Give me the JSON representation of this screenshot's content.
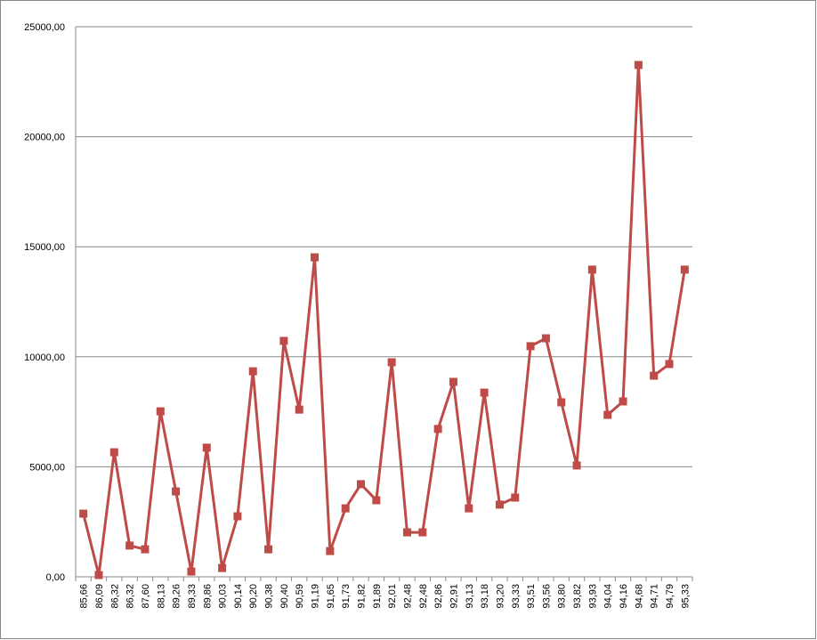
{
  "chart_data": {
    "type": "line",
    "categories": [
      "85,66",
      "86,09",
      "86,32",
      "86,32",
      "87,60",
      "88,13",
      "89,26",
      "89,33",
      "89,86",
      "90,03",
      "90,14",
      "90,20",
      "90,38",
      "90,40",
      "90,59",
      "91,19",
      "91,65",
      "91,73",
      "91,82",
      "91,89",
      "92,01",
      "92,48",
      "92,48",
      "92,86",
      "92,91",
      "93,13",
      "93,18",
      "93,20",
      "93,33",
      "93,51",
      "93,56",
      "93,80",
      "93,82",
      "93,93",
      "94,04",
      "94,16",
      "94,68",
      "94,71",
      "94,79",
      "95,33"
    ],
    "values": [
      2870,
      80,
      5660,
      1420,
      1250,
      7520,
      3880,
      240,
      5870,
      400,
      2750,
      9340,
      1250,
      10720,
      7600,
      14520,
      1170,
      3110,
      4210,
      3480,
      9750,
      2020,
      2020,
      6720,
      8860,
      3110,
      8370,
      3280,
      3600,
      10480,
      10840,
      7930,
      5060,
      13960,
      7360,
      7970,
      23260,
      9140,
      9670,
      13960
    ],
    "color": "#be4b48",
    "ylim": [
      0,
      25000
    ],
    "yticks": [
      {
        "value": 0,
        "label": "0,00"
      },
      {
        "value": 5000,
        "label": "5000,00"
      },
      {
        "value": 10000,
        "label": "10000,00"
      },
      {
        "value": 15000,
        "label": "15000,00"
      },
      {
        "value": 20000,
        "label": "20000,00"
      },
      {
        "value": 25000,
        "label": "25000,00"
      }
    ],
    "grid": true
  }
}
